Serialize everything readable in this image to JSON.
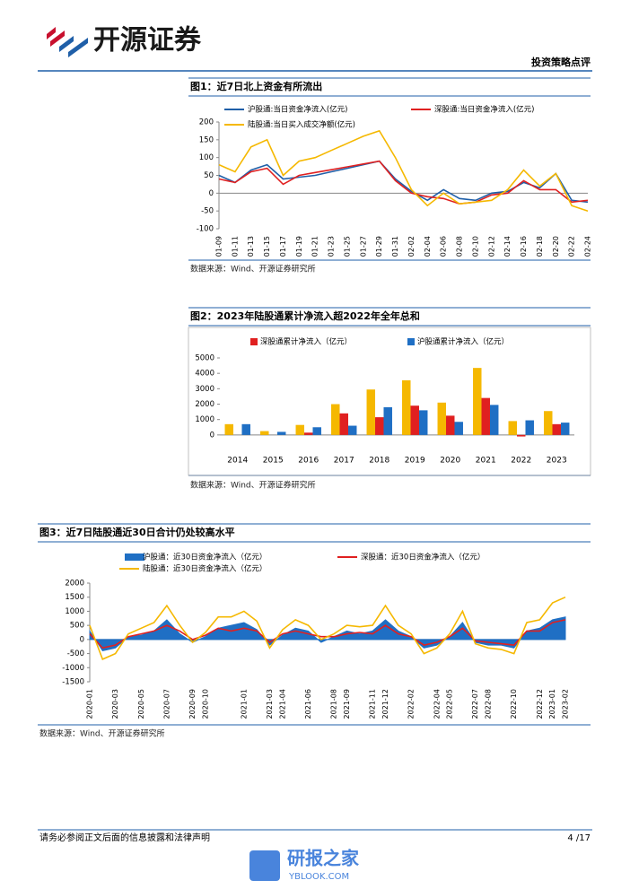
{
  "header": {
    "logo": "开源证券",
    "report_type": "投资策略点评"
  },
  "figures": [
    {
      "title": "图1：近7日北上资金有所流出",
      "source": "数据来源：Wind、开源证券研究所"
    },
    {
      "title": "图2：2023年陆股通累计净流入超2022年全年总和",
      "source": "数据来源：Wind、开源证券研究所"
    },
    {
      "title": "图3：近7日陆股通近30日合计仍处较高水平",
      "source": "数据来源：Wind、开源证券研究所"
    }
  ],
  "chart_data": [
    {
      "type": "line",
      "categories": [
        "01-09",
        "01-11",
        "01-13",
        "01-15",
        "01-17",
        "01-19",
        "01-21",
        "01-23",
        "01-25",
        "01-27",
        "01-29",
        "01-31",
        "02-02",
        "02-04",
        "02-06",
        "02-08",
        "02-10",
        "02-12",
        "02-14",
        "02-16",
        "02-18",
        "02-20",
        "02-22",
        "02-24"
      ],
      "series": [
        {
          "name": "沪股通:当日资金净流入(亿元)",
          "color": "#1f5fa8",
          "values": [
            50,
            30,
            65,
            80,
            40,
            45,
            50,
            60,
            70,
            80,
            90,
            40,
            5,
            -20,
            10,
            -15,
            -20,
            0,
            5,
            30,
            15,
            55,
            -20,
            -25
          ]
        },
        {
          "name": "深股通:当日资金净流入(亿元)",
          "color": "#e02020",
          "values": [
            40,
            30,
            60,
            70,
            25,
            50,
            58,
            66,
            74,
            82,
            90,
            35,
            0,
            -10,
            -15,
            -30,
            -25,
            -5,
            0,
            35,
            10,
            10,
            -25,
            -20
          ]
        },
        {
          "name": "陆股通:当日买入成交净额(亿元)",
          "color": "#f5b800",
          "values": [
            80,
            60,
            130,
            150,
            50,
            90,
            100,
            120,
            140,
            160,
            175,
            100,
            10,
            -35,
            0,
            -30,
            -25,
            -20,
            10,
            65,
            20,
            55,
            -35,
            -50
          ]
        }
      ],
      "ylim": [
        -100,
        200
      ],
      "yticks": [
        -100,
        -50,
        0,
        50,
        100,
        150,
        200
      ]
    },
    {
      "type": "bar",
      "categories": [
        "2014",
        "2015",
        "2016",
        "2017",
        "2018",
        "2019",
        "2020",
        "2021",
        "2022",
        "2023"
      ],
      "series": [
        {
          "color": "#f5b800",
          "values": [
            700,
            250,
            650,
            2000,
            2950,
            3550,
            2100,
            4350,
            900,
            1550
          ]
        },
        {
          "name": "深股通累计净流入（亿元）",
          "color": "#e02020",
          "values": [
            null,
            null,
            150,
            1400,
            1150,
            1900,
            1250,
            2400,
            -100,
            700
          ]
        },
        {
          "name": "沪股通累计净流入（亿元）",
          "color": "#1f6fc4",
          "values": [
            700,
            200,
            500,
            600,
            1800,
            1600,
            850,
            1950,
            950,
            800
          ]
        }
      ],
      "ylim": [
        -300,
        5000
      ],
      "yticks": [
        0,
        1000,
        2000,
        3000,
        4000,
        5000
      ]
    },
    {
      "type": "line",
      "categories": [
        "2020-01",
        null,
        "2020-03",
        null,
        "2020-05",
        null,
        "2020-07",
        null,
        "2020-09",
        "2020-10",
        null,
        null,
        "2021-01",
        null,
        "2021-03",
        "2021-04",
        null,
        "2021-06",
        null,
        "2021-08",
        "2021-09",
        null,
        "2021-11",
        "2021-12",
        null,
        "2022-02",
        null,
        "2022-04",
        "2022-05",
        null,
        "2022-07",
        "2022-08",
        null,
        "2022-10",
        null,
        "2022-12",
        "2023-01",
        "2023-02"
      ],
      "series": [
        {
          "name": "沪股通：近30日资金净流入（亿元）",
          "color": "#1f6fc4",
          "fill": true,
          "values": [
            300,
            -400,
            -300,
            100,
            150,
            300,
            700,
            200,
            -100,
            100,
            400,
            500,
            600,
            350,
            -200,
            150,
            400,
            300,
            -100,
            100,
            300,
            200,
            300,
            700,
            300,
            100,
            -300,
            -200,
            100,
            600,
            -100,
            -200,
            -200,
            -300,
            300,
            400,
            700,
            800
          ]
        },
        {
          "name": "深股通：近30日资金净流入（亿元）",
          "color": "#e02020",
          "values": [
            200,
            -300,
            -200,
            100,
            200,
            300,
            500,
            300,
            0,
            150,
            400,
            300,
            400,
            300,
            -100,
            200,
            300,
            200,
            100,
            100,
            200,
            250,
            200,
            500,
            200,
            100,
            -200,
            -100,
            100,
            400,
            -50,
            -100,
            -150,
            -200,
            300,
            300,
            600,
            700
          ]
        },
        {
          "name": "陆股通：近30日资金净流入（亿元）",
          "color": "#f5b800",
          "values": [
            500,
            -700,
            -500,
            200,
            400,
            600,
            1200,
            500,
            -100,
            250,
            800,
            800,
            1000,
            650,
            -300,
            350,
            700,
            500,
            0,
            200,
            500,
            450,
            500,
            1200,
            500,
            200,
            -500,
            -300,
            200,
            1000,
            -150,
            -300,
            -350,
            -500,
            600,
            700,
            1300,
            1500
          ]
        }
      ],
      "ylim": [
        -1500,
        2000
      ],
      "yticks": [
        -1500,
        -1000,
        -500,
        0,
        500,
        1000,
        1500,
        2000
      ]
    }
  ],
  "footer": {
    "disclaimer": "请务必参阅正文后面的信息披露和法律声明",
    "page": "4 /17"
  },
  "watermark": {
    "name": "研报之家",
    "url": "YBLOOK.COM"
  }
}
